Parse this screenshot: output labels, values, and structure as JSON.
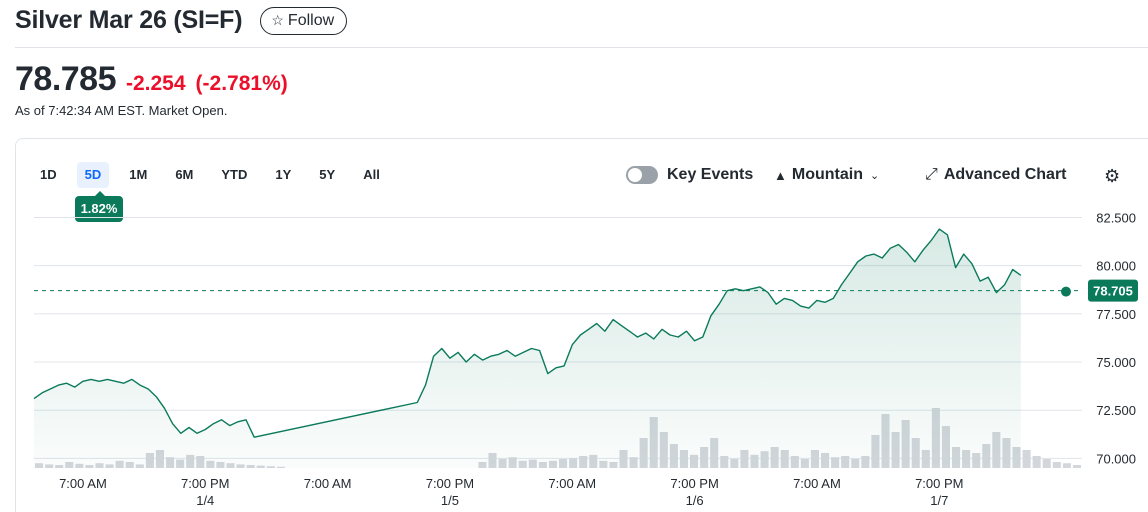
{
  "header": {
    "title": "Silver Mar 26 (SI=F)",
    "follow_label": "Follow"
  },
  "quote": {
    "price": "78.785",
    "change": "-2.254",
    "change_pct": "(-2.781%)",
    "as_of": "As of 7:42:34 AM EST. Market Open."
  },
  "toolbar": {
    "ranges": [
      "1D",
      "5D",
      "1M",
      "6M",
      "YTD",
      "1Y",
      "5Y",
      "All"
    ],
    "active_range": "5D",
    "range_change": "1.82%",
    "key_events_label": "Key Events",
    "chart_type_label": "Mountain",
    "advanced_chart_label": "Advanced Chart"
  },
  "colors": {
    "accent_green": "#0b7a5b",
    "negative_red": "#eb0f29",
    "active_blue": "#0f69ff"
  },
  "chart_data": {
    "type": "area",
    "ylim": [
      69.5,
      83.2
    ],
    "y_ticks": [
      "82.500",
      "80.000",
      "77.500",
      "75.000",
      "72.500",
      "70.000"
    ],
    "y_tick_values": [
      82.5,
      80.0,
      77.5,
      75.0,
      72.5,
      70.0
    ],
    "x_ticks": [
      {
        "label": "7:00 AM",
        "sub": ""
      },
      {
        "label": "7:00 PM",
        "sub": "1/4"
      },
      {
        "label": "7:00 AM",
        "sub": ""
      },
      {
        "label": "7:00 PM",
        "sub": "1/5"
      },
      {
        "label": "7:00 AM",
        "sub": ""
      },
      {
        "label": "7:00 PM",
        "sub": "1/6"
      },
      {
        "label": "7:00 AM",
        "sub": ""
      },
      {
        "label": "7:00 PM",
        "sub": "1/7"
      }
    ],
    "x_tick_values": [
      0,
      12,
      24,
      36,
      48,
      60,
      72,
      84
    ],
    "xlim": [
      -4.8,
      98
    ],
    "previous_close": 78.705,
    "previous_close_label": "78.705",
    "series": [
      {
        "x": [
          -4.8,
          -4.0,
          -3.2,
          -2.4,
          -1.6,
          -0.8,
          0,
          0.8,
          1.6,
          2.4,
          3.2,
          4.0,
          4.8,
          5.6,
          6.4,
          7.2,
          8.0,
          8.8,
          9.6,
          10.4,
          11.2,
          12.0,
          12.8,
          13.6,
          14.4,
          15.2,
          16.0,
          16.8,
          32.8,
          33.6,
          34.4,
          35.2,
          36.0,
          36.8,
          37.6,
          38.4,
          39.2,
          40.0,
          40.8,
          41.6,
          42.4,
          43.2,
          44.0,
          44.8,
          45.6,
          46.4,
          47.2,
          48.0,
          48.8,
          49.6,
          50.4,
          51.2,
          52.0,
          52.8,
          53.6,
          54.4,
          55.2,
          56.0,
          56.8,
          57.6,
          58.4,
          59.2,
          60.0,
          60.8,
          61.6,
          62.4,
          63.2,
          64.0,
          64.8,
          65.6,
          66.4,
          67.2,
          68.0,
          68.8,
          69.6,
          70.4,
          71.2,
          72.0,
          72.8,
          73.6,
          74.4,
          75.2,
          76.0,
          76.8,
          77.6,
          78.4,
          79.2,
          80.0,
          80.8,
          81.6,
          82.4,
          83.2,
          84.0,
          84.8,
          85.6,
          86.4,
          87.2,
          88.0,
          88.8,
          89.6,
          90.4,
          91.2,
          92.0
        ],
        "y": [
          73.1,
          73.4,
          73.6,
          73.8,
          73.9,
          73.7,
          74.0,
          74.1,
          74.0,
          74.1,
          74.0,
          73.9,
          74.1,
          73.8,
          73.6,
          73.2,
          72.6,
          71.8,
          71.3,
          71.6,
          71.3,
          71.5,
          71.8,
          72.0,
          71.7,
          71.9,
          72.0,
          71.1,
          72.9,
          73.8,
          75.3,
          75.7,
          75.2,
          75.5,
          75.0,
          75.4,
          75.1,
          75.3,
          75.4,
          75.6,
          75.3,
          75.5,
          75.7,
          75.6,
          74.4,
          74.7,
          74.8,
          75.9,
          76.4,
          76.7,
          77.0,
          76.6,
          77.2,
          76.9,
          76.6,
          76.3,
          76.5,
          76.2,
          76.7,
          76.4,
          76.3,
          76.6,
          76.1,
          76.3,
          77.4,
          78.0,
          78.7,
          78.8,
          78.7,
          78.8,
          78.9,
          78.6,
          78.0,
          78.3,
          78.2,
          77.9,
          77.8,
          78.2,
          78.1,
          78.3,
          79.0,
          79.6,
          80.2,
          80.5,
          80.6,
          80.4,
          80.9,
          81.1,
          80.7,
          80.2,
          80.8,
          81.3,
          81.9,
          81.6,
          79.9,
          80.6,
          80.1,
          79.2,
          79.4,
          78.6,
          79.0,
          79.8,
          79.5
        ]
      }
    ],
    "volume": [
      0.08,
      0.06,
      0.05,
      0.1,
      0.07,
      0.05,
      0.08,
      0.06,
      0.12,
      0.1,
      0.06,
      0.25,
      0.3,
      0.18,
      0.14,
      0.22,
      0.2,
      0.12,
      0.1,
      0.08,
      0.06,
      0.05,
      0.04,
      0.03,
      0.02,
      0,
      0,
      0,
      0,
      0,
      0,
      0,
      0,
      0,
      0,
      0,
      0,
      0,
      0,
      0,
      0,
      0,
      0,
      0,
      0.1,
      0.25,
      0.15,
      0.18,
      0.12,
      0.14,
      0.1,
      0.12,
      0.15,
      0.16,
      0.2,
      0.22,
      0.12,
      0.1,
      0.3,
      0.18,
      0.5,
      0.85,
      0.6,
      0.4,
      0.3,
      0.22,
      0.35,
      0.5,
      0.2,
      0.15,
      0.3,
      0.22,
      0.28,
      0.35,
      0.3,
      0.2,
      0.15,
      0.3,
      0.25,
      0.18,
      0.2,
      0.15,
      0.2,
      0.55,
      0.9,
      0.6,
      0.8,
      0.5,
      0.3,
      1.0,
      0.7,
      0.35,
      0.3,
      0.25,
      0.4,
      0.6,
      0.5,
      0.35,
      0.3,
      0.2,
      0.15,
      0.1,
      0.08,
      0.05
    ]
  }
}
